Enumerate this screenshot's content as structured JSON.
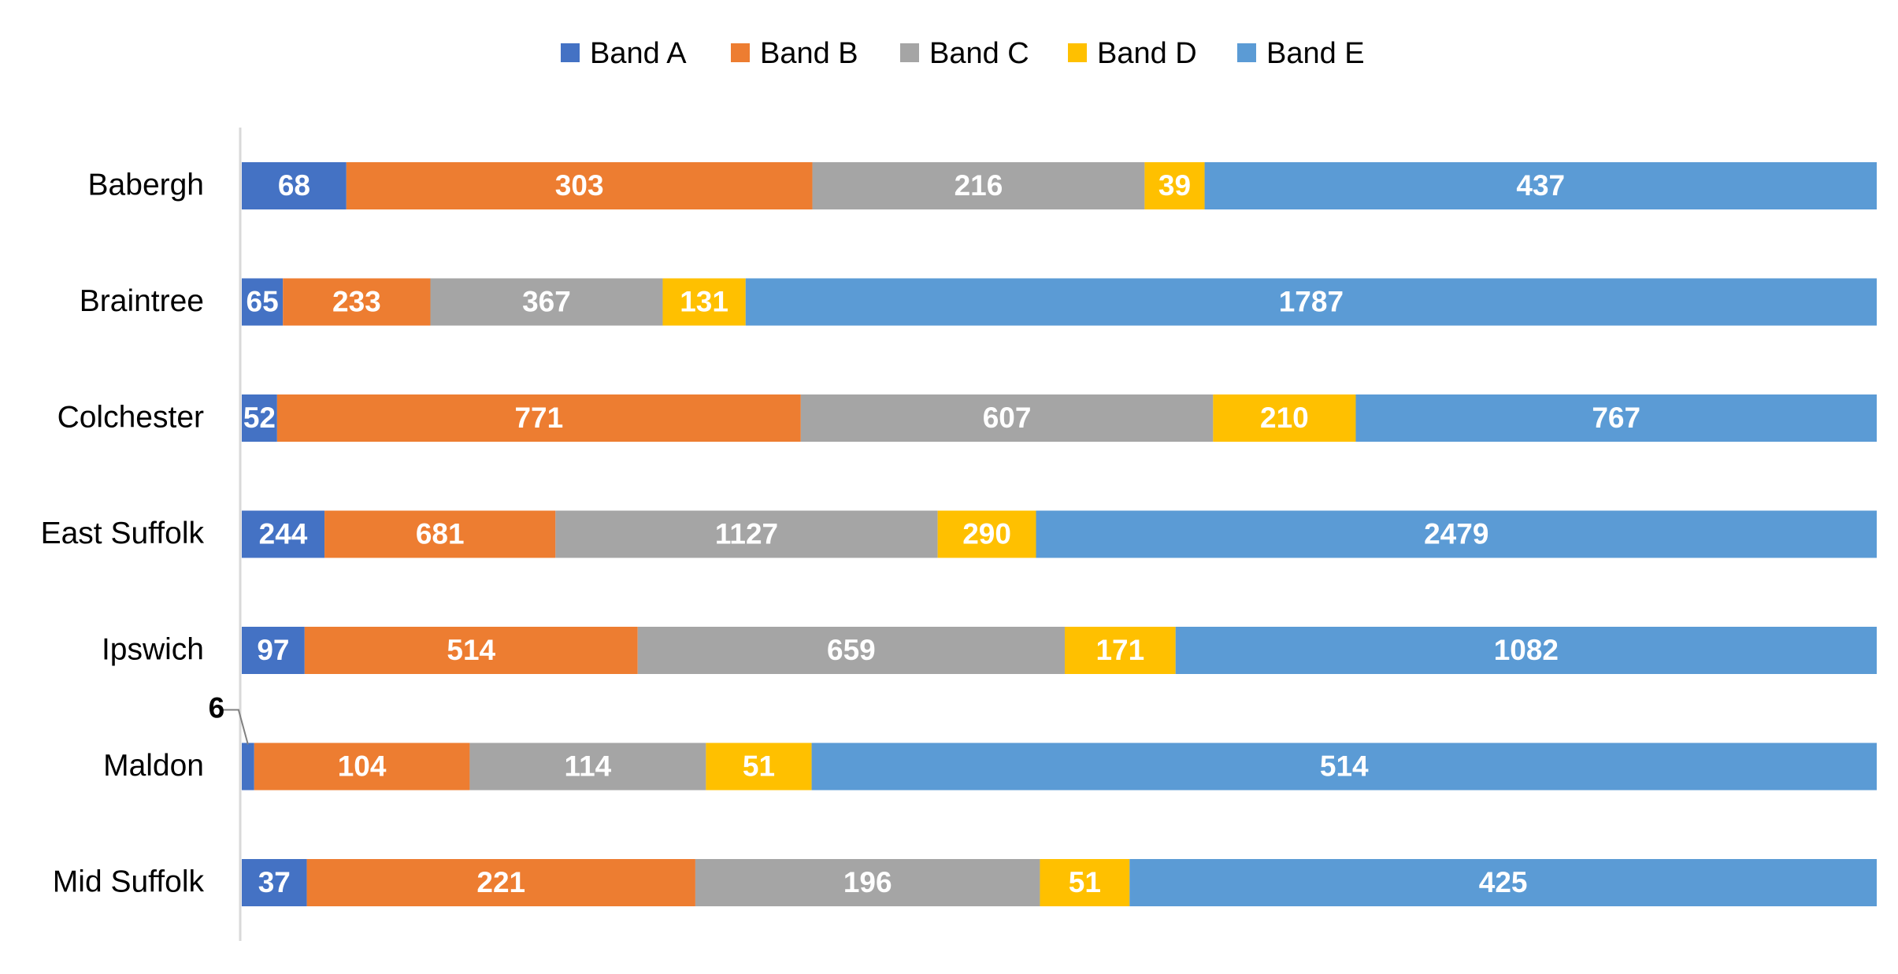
{
  "chart_data": {
    "type": "bar",
    "orientation": "horizontal",
    "stacked": true,
    "normalized": true,
    "title": "",
    "xlabel": "",
    "ylabel": "",
    "legend_position": "top",
    "grid": false,
    "categories": [
      "Babergh",
      "Braintree",
      "Colchester",
      "East Suffolk",
      "Ipswich",
      "Maldon",
      "Mid Suffolk"
    ],
    "series": [
      {
        "name": "Band A",
        "color": "#4472C4",
        "values": [
          68,
          65,
          52,
          244,
          97,
          6,
          37
        ]
      },
      {
        "name": "Band B",
        "color": "#ED7D31",
        "values": [
          303,
          233,
          771,
          681,
          514,
          104,
          221
        ]
      },
      {
        "name": "Band C",
        "color": "#A5A5A5",
        "values": [
          216,
          367,
          607,
          1127,
          659,
          114,
          196
        ]
      },
      {
        "name": "Band D",
        "color": "#FFC000",
        "values": [
          39,
          131,
          210,
          290,
          171,
          51,
          51
        ]
      },
      {
        "name": "Band E",
        "color": "#5B9BD5",
        "values": [
          437,
          1787,
          767,
          2479,
          1082,
          514,
          425
        ]
      }
    ],
    "callouts": [
      {
        "category": "Maldon",
        "series": "Band A",
        "label": "6"
      }
    ]
  }
}
